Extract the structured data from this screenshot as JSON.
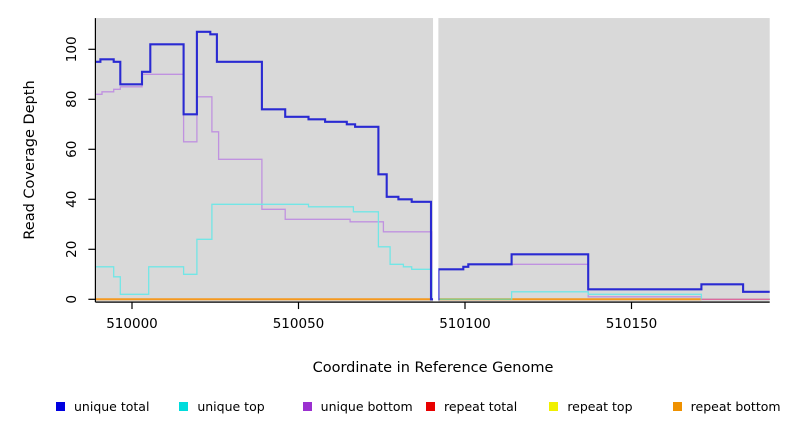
{
  "y_axis": {
    "label": "Read Coverage Depth",
    "ticks": [
      0,
      20,
      40,
      60,
      80,
      100
    ]
  },
  "x_axis": {
    "label": "Coordinate in Reference Genome",
    "ticks": [
      510000,
      510050,
      510100,
      510150
    ]
  },
  "chart_data": {
    "type": "step-line",
    "title": "",
    "xlabel": "Coordinate in Reference Genome",
    "ylabel": "Read Coverage Depth",
    "x_range": [
      509989,
      510191.5
    ],
    "y_display_range": [
      -1.1,
      112.5
    ],
    "plot_bg": "#d9d9d9",
    "axis_color": "#000000",
    "grid": false,
    "gap_band": {
      "from": 510090.4,
      "to": 510092.0,
      "color": "#ffffff"
    },
    "series": [
      {
        "name": "unique total",
        "color": "#2a2ad2",
        "legend_color": "#0000e0",
        "width": 2.1,
        "end": 510191.5,
        "points": [
          [
            509989,
            95
          ],
          [
            509990.5,
            96
          ],
          [
            509994.5,
            95
          ],
          [
            509996.5,
            86
          ],
          [
            510003,
            91
          ],
          [
            510005.5,
            102
          ],
          [
            510015.5,
            74
          ],
          [
            510019.5,
            107
          ],
          [
            510023.5,
            106
          ],
          [
            510025.5,
            95
          ],
          [
            510039,
            76
          ],
          [
            510046,
            73
          ],
          [
            510053,
            72
          ],
          [
            510058,
            71
          ],
          [
            510064.5,
            70
          ],
          [
            510067,
            69
          ],
          [
            510074,
            50
          ],
          [
            510076.5,
            41
          ],
          [
            510080,
            40
          ],
          [
            510084,
            39
          ],
          [
            510089.8,
            0
          ],
          [
            510092,
            12
          ],
          [
            510099.5,
            13
          ],
          [
            510101,
            14
          ],
          [
            510114,
            18
          ],
          [
            510137,
            4
          ],
          [
            510171,
            6
          ],
          [
            510183.5,
            3
          ]
        ]
      },
      {
        "name": "unique top",
        "color": "#72e6e6",
        "legend_color": "#00dcdc",
        "width": 1.3,
        "end": 510191.5,
        "points": [
          [
            509989,
            13
          ],
          [
            509994.5,
            9
          ],
          [
            509996.5,
            2
          ],
          [
            510005,
            13
          ],
          [
            510015.5,
            10
          ],
          [
            510019.5,
            24
          ],
          [
            510024,
            38
          ],
          [
            510053,
            37
          ],
          [
            510066.5,
            35
          ],
          [
            510074,
            21
          ],
          [
            510077.5,
            14
          ],
          [
            510081.5,
            13
          ],
          [
            510084,
            12
          ],
          [
            510090,
            0
          ],
          [
            510114,
            3
          ],
          [
            510137,
            2
          ],
          [
            510171,
            0
          ]
        ]
      },
      {
        "name": "unique bottom",
        "color": "#c092e0",
        "legend_color": "#9b30d0",
        "width": 1.3,
        "end": 510191.5,
        "points": [
          [
            509989,
            82
          ],
          [
            509991,
            83
          ],
          [
            509994.5,
            84
          ],
          [
            509996.5,
            85
          ],
          [
            510003,
            90
          ],
          [
            510015.5,
            63
          ],
          [
            510019.5,
            81
          ],
          [
            510024,
            67
          ],
          [
            510026,
            56
          ],
          [
            510039,
            36
          ],
          [
            510046,
            32
          ],
          [
            510065.5,
            31
          ],
          [
            510075.5,
            27
          ],
          [
            510090,
            0
          ],
          [
            510092,
            12
          ],
          [
            510099.5,
            13
          ],
          [
            510101,
            14
          ],
          [
            510137,
            1
          ],
          [
            510171,
            0
          ]
        ]
      },
      {
        "name": "repeat total",
        "color": "#d03030",
        "legend_color": "#e80000",
        "width": 1.3,
        "end": 510191.5,
        "points": [
          [
            509989,
            0
          ]
        ]
      },
      {
        "name": "repeat top",
        "color": "#e6e600",
        "legend_color": "#f0f000",
        "width": 1.3,
        "end": 510191.5,
        "points": [
          [
            509989,
            0
          ]
        ]
      },
      {
        "name": "repeat bottom",
        "color": "#f5991f",
        "legend_color": "#ef9100",
        "width": 2,
        "end": 510171,
        "points": [
          [
            509989,
            0
          ]
        ]
      }
    ],
    "draw_order": [
      "repeat total",
      "repeat top",
      "repeat bottom",
      "unique bottom",
      "unique top",
      "ARTIFACTS",
      "unique total"
    ],
    "overlap_artifacts": [
      {
        "from": 510092,
        "to": 510114,
        "value": 0,
        "color": "#87c987",
        "width": 1.5,
        "note": "unique-top over repeat-top blend"
      },
      {
        "from": 510171,
        "to": 510191.5,
        "value": 0,
        "color": "#de6b9d",
        "width": 1.3,
        "note": "repeat-total over unique-bottom blend"
      }
    ]
  },
  "legend": {
    "items": [
      {
        "label": "unique total",
        "color": "#0000e0"
      },
      {
        "label": "unique top",
        "color": "#00dcdc"
      },
      {
        "label": "unique bottom",
        "color": "#9b30d0"
      },
      {
        "label": "repeat total",
        "color": "#e80000"
      },
      {
        "label": "repeat top",
        "color": "#f0f000"
      },
      {
        "label": "repeat bottom",
        "color": "#ef9100"
      }
    ]
  }
}
